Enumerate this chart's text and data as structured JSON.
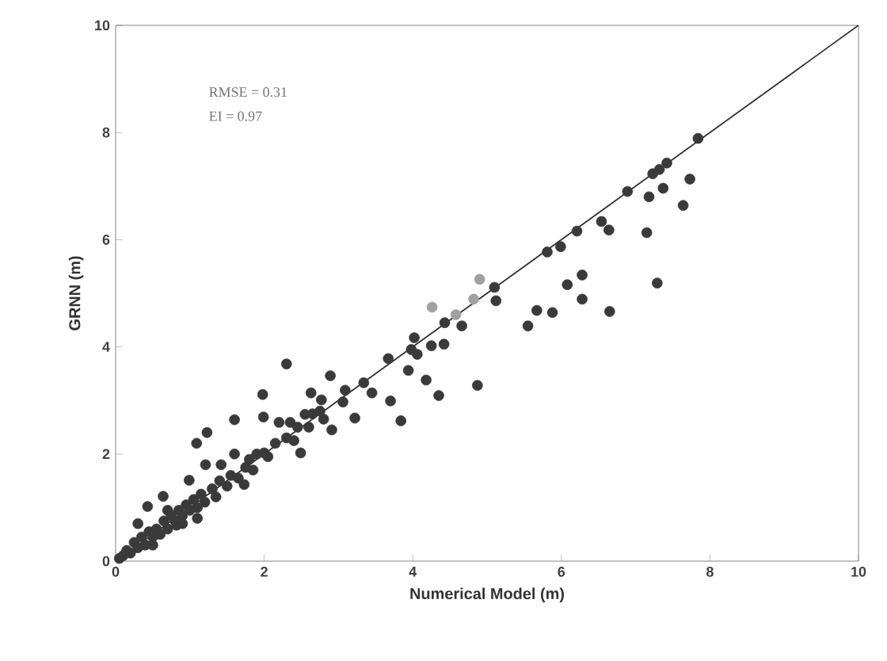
{
  "chart_data": {
    "type": "scatter",
    "xlabel": "**Numerical Model** (m)",
    "ylabel": "**GRNN** (m)",
    "xlim": [
      0,
      10
    ],
    "ylim": [
      0,
      10
    ],
    "xticks": [
      0,
      2,
      4,
      6,
      8,
      10
    ],
    "yticks": [
      0,
      2,
      4,
      6,
      8,
      10
    ],
    "grid": false,
    "annotations": [
      "RMSE =  0.31",
      "EI = 0.97"
    ],
    "series": [
      {
        "type": "line",
        "marker": "none",
        "color": "#303030",
        "x": [
          0,
          10
        ],
        "values": [
          0,
          10
        ]
      },
      {
        "marker": "circle",
        "color": "#3a3a3a",
        "x": [
          7.84,
          7.73,
          7.64,
          7.37,
          7.29,
          7.42,
          7.32,
          7.23,
          7.18,
          7.15,
          6.89,
          6.64,
          6.54,
          6.65,
          6.28,
          6.28,
          6.21,
          6.08,
          5.99,
          5.81,
          5.88,
          5.67,
          5.55,
          5.12,
          5.1,
          4.66,
          4.43,
          4.42,
          4.25,
          4.02,
          3.98,
          4.06,
          4.18,
          4.35,
          4.87,
          3.94,
          3.67,
          3.7,
          3.84,
          3.45,
          3.34,
          3.22,
          3.09,
          2.89,
          2.91,
          3.06,
          2.77,
          2.63,
          2.55,
          2.3,
          2.49,
          2.35,
          2.2,
          1.98,
          1.99,
          2.0,
          1.8,
          1.6,
          1.23,
          1.09,
          1.73,
          1.6,
          1.42,
          1.21,
          0.99,
          0.82,
          0.64,
          0.43,
          0.05,
          0.1,
          0.15,
          0.2,
          0.25,
          0.3,
          0.35,
          0.4,
          0.45,
          0.5,
          0.55,
          0.6,
          0.65,
          0.7,
          0.75,
          0.8,
          0.85,
          0.9,
          0.95,
          1.0,
          1.05,
          1.1,
          1.15,
          1.2,
          1.3,
          1.35,
          1.4,
          1.5,
          1.55,
          1.65,
          1.75,
          1.85,
          1.9,
          2.05,
          2.15,
          2.3,
          2.4,
          2.45,
          2.6,
          2.65,
          2.75,
          2.8,
          0.3,
          0.5,
          0.7,
          0.9,
          1.1
        ],
        "values": [
          7.89,
          7.13,
          6.64,
          6.96,
          5.19,
          7.43,
          7.31,
          7.23,
          6.8,
          6.13,
          6.9,
          6.18,
          6.34,
          4.66,
          5.34,
          4.89,
          6.16,
          5.16,
          5.87,
          5.77,
          4.64,
          4.68,
          4.39,
          4.86,
          5.11,
          4.39,
          4.45,
          4.05,
          4.02,
          4.17,
          3.95,
          3.86,
          3.38,
          3.09,
          3.28,
          3.56,
          3.78,
          2.99,
          2.62,
          3.14,
          3.33,
          2.67,
          3.19,
          3.46,
          2.45,
          2.97,
          3.01,
          3.14,
          2.74,
          3.68,
          2.02,
          2.59,
          2.59,
          3.11,
          2.69,
          2.02,
          1.9,
          2.64,
          2.4,
          2.2,
          1.43,
          2.0,
          1.8,
          1.8,
          1.51,
          0.67,
          1.21,
          1.02,
          0.05,
          0.1,
          0.2,
          0.15,
          0.35,
          0.25,
          0.45,
          0.3,
          0.55,
          0.45,
          0.6,
          0.5,
          0.75,
          0.6,
          0.85,
          0.75,
          0.95,
          0.85,
          1.05,
          0.95,
          1.15,
          1.0,
          1.25,
          1.1,
          1.35,
          1.2,
          1.5,
          1.4,
          1.6,
          1.55,
          1.75,
          1.7,
          2.0,
          1.95,
          2.2,
          2.3,
          2.25,
          2.5,
          2.5,
          2.75,
          2.8,
          2.65,
          0.7,
          0.3,
          0.95,
          0.7,
          0.8
        ]
      },
      {
        "marker": "circle",
        "color": "#a0a0a0",
        "x": [
          4.9,
          4.82,
          4.26,
          4.58
        ],
        "values": [
          5.26,
          4.89,
          4.74,
          4.6
        ]
      }
    ]
  }
}
